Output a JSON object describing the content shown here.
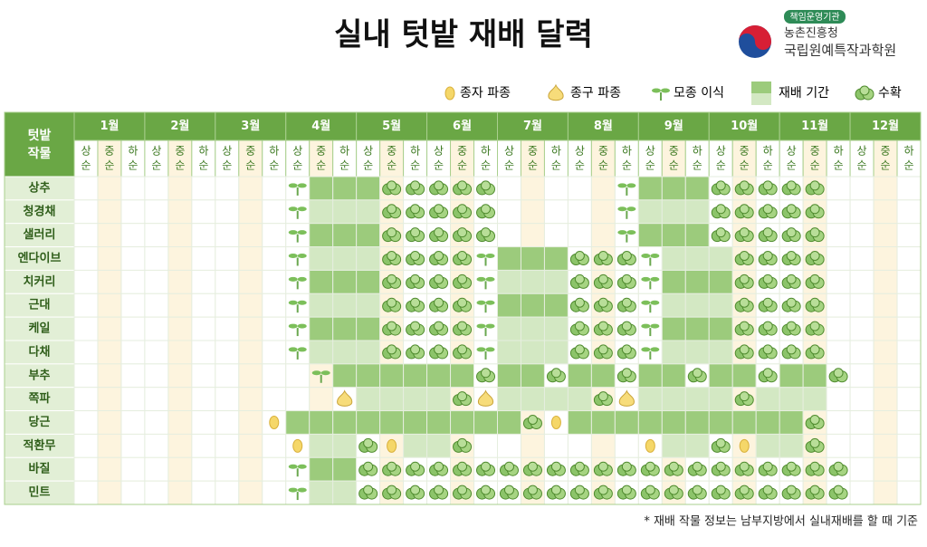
{
  "title": "실내 텃밭 재배 달력",
  "logo": {
    "tag": "책임운영기관",
    "org1": "농촌진흥청",
    "org2": "국립원예특작과학원"
  },
  "legend": {
    "seed": "종자 파종",
    "bulb": "종구 파종",
    "transplant": "모종 이식",
    "growing": "재배 기간",
    "harvest": "수확"
  },
  "table": {
    "corner": [
      "텃밭",
      "작물"
    ],
    "months": [
      "1월",
      "2월",
      "3월",
      "4월",
      "5월",
      "6월",
      "7월",
      "8월",
      "9월",
      "10월",
      "11월",
      "12월"
    ],
    "parts": [
      "상",
      "중",
      "하"
    ],
    "suffix": "순",
    "crops": [
      {
        "name": "상추",
        "cells": ".........tggghhhhh.....tggghhhhh...."
      },
      {
        "name": "청경채",
        "cells": ".........tlllhhhhh.....tlllhhhhh...."
      },
      {
        "name": "샐러리",
        "cells": ".........tggghhhhh.....tggghhhhh...."
      },
      {
        "name": "엔다이브",
        "cells": ".........tlllhhhhtggghhhtlllhhhh...."
      },
      {
        "name": "치커리",
        "cells": ".........tggghhhhtlllhhhtggghhhh...."
      },
      {
        "name": "근대",
        "cells": ".........tlllhhhhtggghhhtlllhhhh...."
      },
      {
        "name": "케일",
        "cells": ".........tggghhhhtlllhhhtggghhhh...."
      },
      {
        "name": "다채",
        "cells": ".........tlllhhhhtlllhhhtlllhhhh...."
      },
      {
        "name": "부추",
        "cells": "..........tgggggghgghgghgghgghggh..."
      },
      {
        "name": "쪽파",
        "cells": "...........bllllhbllllhbllllhlll...."
      },
      {
        "name": "당근",
        "cells": "........sgggggggggghsggggggggggh...."
      },
      {
        "name": "적환무",
        "cells": ".........sllhsllh.......sllhsllh...."
      },
      {
        "name": "바질",
        "cells": ".........tgghhhhhhhhhhhhhhhhhhhhh..."
      },
      {
        "name": "민트",
        "cells": ".........tllhhhhhhhhhhhhhhhhhhhhh..."
      }
    ]
  },
  "footnote": "* 재배 작물 정보는 남부지방에서 실내재배를 할 때 기준"
}
